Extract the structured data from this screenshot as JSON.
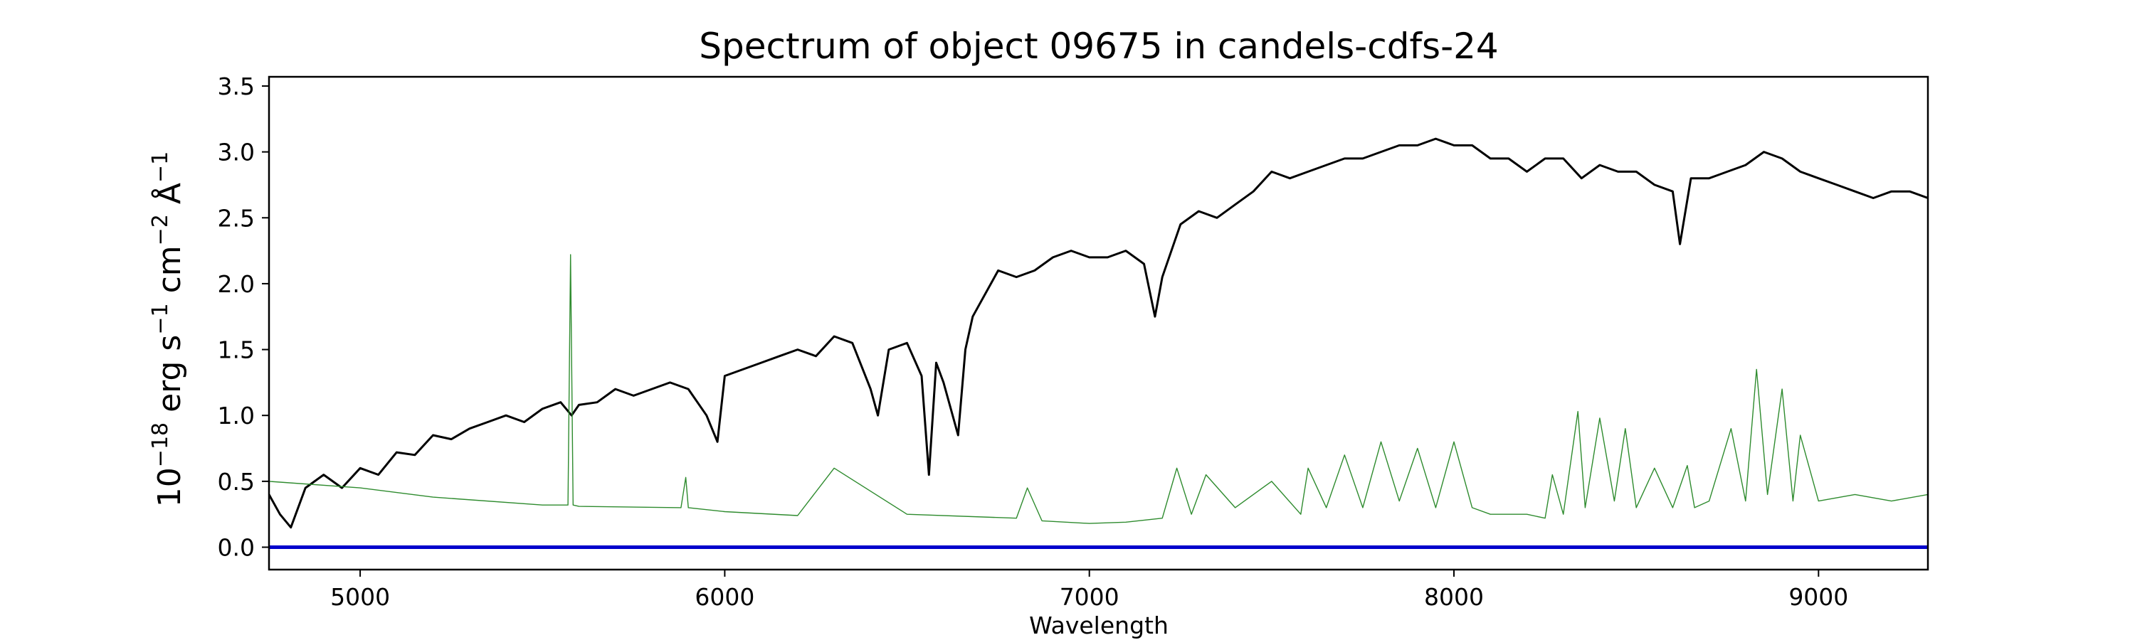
{
  "chart_data": {
    "type": "line",
    "title": "Spectrum of object 09675 in candels-cdfs-24",
    "xlabel": "Wavelength",
    "ylabel": {
      "base": "10",
      "exp1": "−18",
      "text1": " erg s",
      "exp2": "−1",
      "text2": " cm",
      "exp3": "−2",
      "text3": " Å",
      "exp4": "−1"
    },
    "xlim": [
      4750,
      9300
    ],
    "ylim": [
      -0.17,
      3.57
    ],
    "xticks": [
      5000,
      6000,
      7000,
      8000,
      9000
    ],
    "yticks": [
      0.0,
      0.5,
      1.0,
      1.5,
      2.0,
      2.5,
      3.0,
      3.5
    ],
    "ytick_labels": [
      "0.0",
      "0.5",
      "1.0",
      "1.5",
      "2.0",
      "2.5",
      "3.0",
      "3.5"
    ],
    "grid": false,
    "series": [
      {
        "color": "#000000",
        "line_width": 3,
        "x": [
          4750,
          4780,
          4810,
          4850,
          4900,
          4950,
          5000,
          5050,
          5100,
          5150,
          5200,
          5250,
          5300,
          5350,
          5400,
          5450,
          5500,
          5550,
          5580,
          5600,
          5650,
          5700,
          5750,
          5800,
          5850,
          5900,
          5950,
          5980,
          6000,
          6050,
          6100,
          6150,
          6200,
          6250,
          6300,
          6350,
          6400,
          6420,
          6450,
          6500,
          6540,
          6560,
          6580,
          6600,
          6640,
          6660,
          6680,
          6700,
          6750,
          6800,
          6850,
          6900,
          6950,
          7000,
          7050,
          7100,
          7150,
          7180,
          7200,
          7250,
          7300,
          7350,
          7400,
          7450,
          7500,
          7550,
          7600,
          7650,
          7700,
          7750,
          7800,
          7850,
          7900,
          7950,
          8000,
          8050,
          8100,
          8150,
          8200,
          8250,
          8300,
          8350,
          8400,
          8450,
          8500,
          8550,
          8600,
          8620,
          8650,
          8700,
          8750,
          8800,
          8850,
          8900,
          8950,
          9000,
          9050,
          9100,
          9150,
          9200,
          9250,
          9300
        ],
        "y": [
          0.4,
          0.25,
          0.15,
          0.45,
          0.55,
          0.45,
          0.6,
          0.55,
          0.72,
          0.7,
          0.85,
          0.82,
          0.9,
          0.95,
          1.0,
          0.95,
          1.05,
          1.1,
          1.0,
          1.08,
          1.1,
          1.2,
          1.15,
          1.2,
          1.25,
          1.2,
          1.0,
          0.8,
          1.3,
          1.35,
          1.4,
          1.45,
          1.5,
          1.45,
          1.6,
          1.55,
          1.2,
          1.0,
          1.5,
          1.55,
          1.3,
          0.55,
          1.4,
          1.25,
          0.85,
          1.5,
          1.75,
          1.85,
          2.1,
          2.05,
          2.1,
          2.2,
          2.25,
          2.2,
          2.2,
          2.25,
          2.15,
          1.75,
          2.05,
          2.45,
          2.55,
          2.5,
          2.6,
          2.7,
          2.85,
          2.8,
          2.85,
          2.9,
          2.95,
          2.95,
          3.0,
          3.05,
          3.05,
          3.1,
          3.05,
          3.05,
          2.95,
          2.95,
          2.85,
          2.95,
          2.95,
          2.8,
          2.9,
          2.85,
          2.85,
          2.75,
          2.7,
          2.3,
          2.8,
          2.8,
          2.85,
          2.9,
          3.0,
          2.95,
          2.85,
          2.8,
          2.75,
          2.7,
          2.65,
          2.7,
          2.7,
          2.65
        ]
      },
      {
        "color": "#2e8b2e",
        "line_width": 1.4,
        "x": [
          4750,
          5000,
          5200,
          5500,
          5570,
          5577,
          5584,
          5600,
          5880,
          5893,
          5900,
          6000,
          6200,
          6300,
          6500,
          6800,
          6830,
          6870,
          7000,
          7100,
          7200,
          7240,
          7280,
          7320,
          7400,
          7500,
          7580,
          7600,
          7650,
          7700,
          7750,
          7800,
          7850,
          7900,
          7950,
          8000,
          8050,
          8100,
          8200,
          8250,
          8270,
          8300,
          8340,
          8360,
          8400,
          8440,
          8470,
          8500,
          8550,
          8600,
          8640,
          8660,
          8700,
          8760,
          8800,
          8830,
          8860,
          8900,
          8930,
          8950,
          9000,
          9100,
          9200,
          9300
        ],
        "y": [
          0.5,
          0.45,
          0.38,
          0.32,
          0.32,
          2.22,
          0.32,
          0.31,
          0.3,
          0.53,
          0.3,
          0.27,
          0.24,
          0.6,
          0.25,
          0.22,
          0.45,
          0.2,
          0.18,
          0.19,
          0.22,
          0.6,
          0.25,
          0.55,
          0.3,
          0.5,
          0.25,
          0.6,
          0.3,
          0.7,
          0.3,
          0.8,
          0.35,
          0.75,
          0.3,
          0.8,
          0.3,
          0.25,
          0.25,
          0.22,
          0.55,
          0.25,
          1.03,
          0.3,
          0.98,
          0.35,
          0.9,
          0.3,
          0.6,
          0.3,
          0.62,
          0.3,
          0.35,
          0.9,
          0.35,
          1.35,
          0.4,
          1.2,
          0.35,
          0.85,
          0.35,
          0.4,
          0.35,
          0.4
        ]
      },
      {
        "color": "#0000cc",
        "line_width": 5,
        "x": [
          4750,
          9300
        ],
        "y": [
          0.0,
          0.0
        ]
      }
    ]
  }
}
